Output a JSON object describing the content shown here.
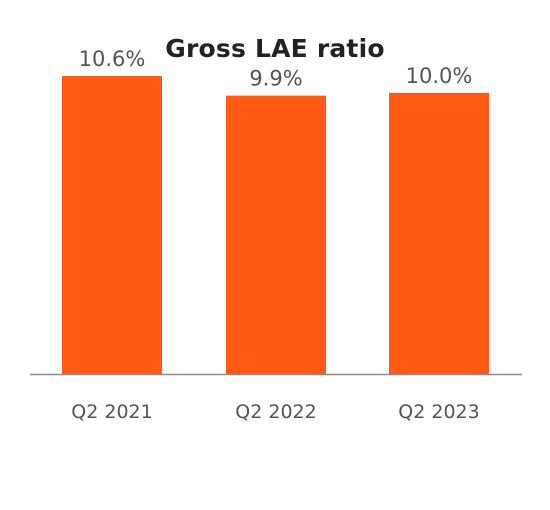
{
  "chart_data": {
    "type": "bar",
    "title": "Gross LAE ratio",
    "categories": [
      "Q2 2021",
      "Q2 2022",
      "Q2 2023"
    ],
    "values": [
      10.6,
      9.9,
      10.0
    ],
    "data_labels": [
      "10.6%",
      "9.9%",
      "10.0%"
    ],
    "value_unit": "%",
    "xlabel": "",
    "ylabel": "",
    "ylim": [
      0,
      11
    ],
    "grid": false,
    "legend": "none",
    "bar_color": "#FF5A16",
    "axis_color": "#8C8C8C",
    "text_color": "#555555"
  }
}
